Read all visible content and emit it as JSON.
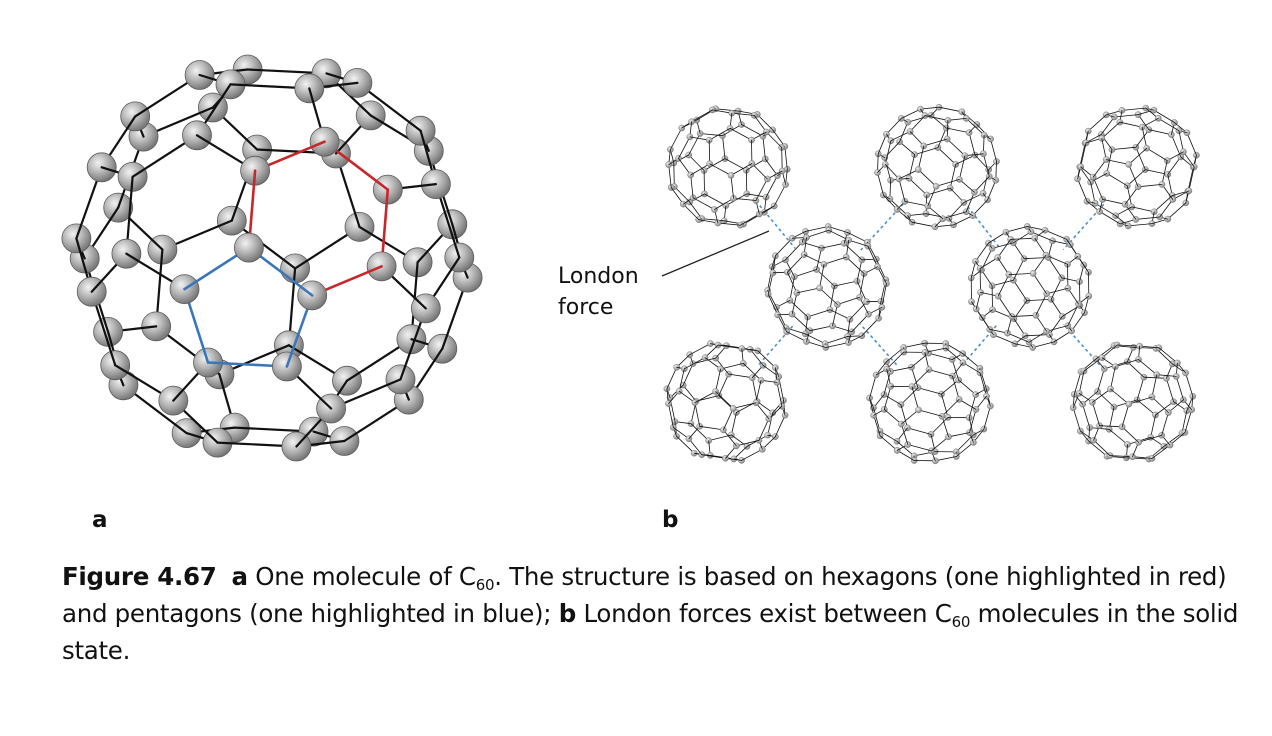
{
  "figure": {
    "number": "Figure 4.67",
    "panel_a_label": "a",
    "panel_b_label": "b",
    "callout_line1": "London",
    "callout_line2": "force",
    "caption": {
      "a_marker": "a",
      "part1": "One molecule of C",
      "sub1": "60",
      "part2": ". The structure is based on hexagons (one highlighted in red) and pentagons (one highlighted in blue); ",
      "b_marker": "b",
      "part3": "London forces exist between C",
      "sub2": "60",
      "part4": " molecules in the solid state."
    },
    "colors": {
      "bond": "#111111",
      "hexagon_highlight": "#c8262b",
      "pentagon_highlight": "#3a76b8",
      "london_force_line": "#4a90c8",
      "atom_fill": "#a9a9a9"
    }
  }
}
